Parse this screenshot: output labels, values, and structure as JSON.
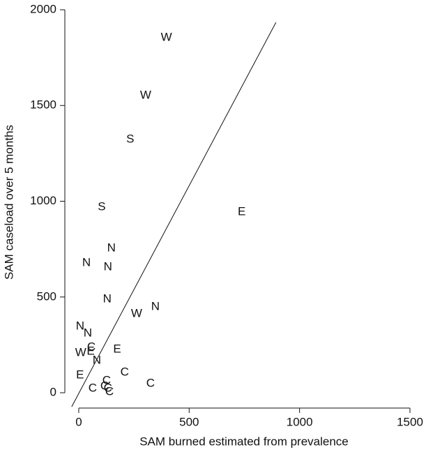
{
  "chart_data": {
    "type": "scatter",
    "x_label": "SAM burned estimated from prevalence",
    "y_label": "SAM caseload over 5 months",
    "xlim": [
      -63,
      1500
    ],
    "ylim": [
      -80,
      2000
    ],
    "xticks": [
      0,
      500,
      1000,
      1500
    ],
    "yticks": [
      0,
      500,
      1000,
      1500,
      2000
    ],
    "color": "#111111",
    "series": [
      {
        "labels": [
          "W",
          "W",
          "S",
          "S",
          "E",
          "N",
          "N",
          "N",
          "N",
          "N",
          "W",
          "N",
          "N",
          "C",
          "E",
          "W",
          "E",
          "N",
          "C",
          "E",
          "C",
          "C",
          "C",
          "C",
          "C",
          "C"
        ],
        "x": [
          397,
          303,
          233,
          104,
          738,
          148,
          35,
          132,
          129,
          347,
          262,
          6,
          41,
          57,
          174,
          9,
          54,
          82,
          208,
          6,
          325,
          126,
          63,
          117,
          139,
          132
        ],
        "y": [
          1854,
          1552,
          1322,
          969,
          944,
          754,
          678,
          656,
          488,
          448,
          412,
          346,
          310,
          237,
          226,
          208,
          215,
          168,
          106,
          91,
          47,
          62,
          22,
          33,
          4,
          22
        ]
      }
    ],
    "fit_line": {
      "x": [
        -32,
        893
      ],
      "y": [
        -73,
        1934
      ]
    }
  }
}
